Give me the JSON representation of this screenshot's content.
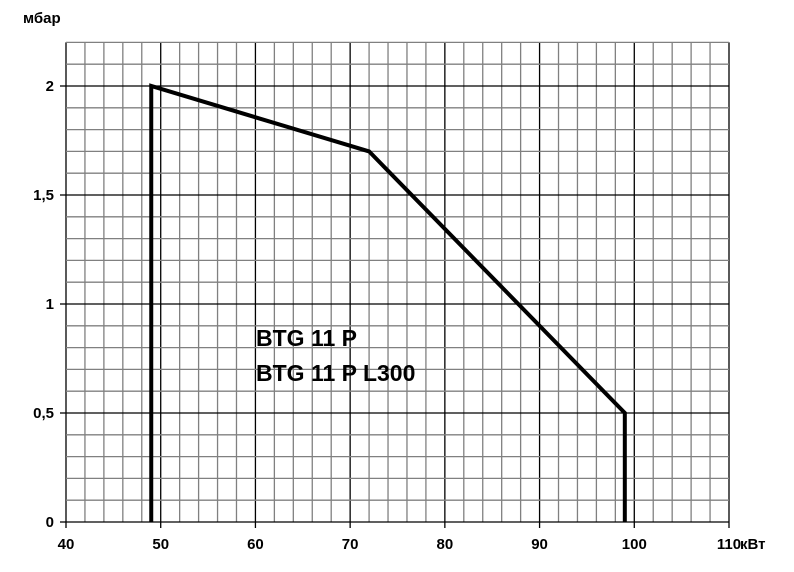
{
  "chart_data": {
    "type": "line",
    "title": "",
    "xlabel": "кВт",
    "ylabel": "мбар",
    "xlim": [
      40,
      110
    ],
    "ylim": [
      0,
      2.2
    ],
    "x_ticks": [
      40,
      50,
      60,
      70,
      80,
      90,
      100,
      110
    ],
    "x_tick_labels": [
      "40",
      "50",
      "60",
      "70",
      "80",
      "90",
      "100",
      "110"
    ],
    "y_ticks": [
      0,
      0.5,
      1,
      1.5,
      2
    ],
    "y_tick_labels": [
      "0",
      "0,5",
      "1",
      "1,5",
      "2"
    ],
    "x_minor_step": 2,
    "y_minor_step": 0.1,
    "grid": true,
    "series": [
      {
        "x": [
          49,
          49,
          72,
          99,
          99
        ],
        "y": [
          0,
          2,
          1.7,
          0.5,
          0
        ]
      }
    ],
    "annotations": [
      "BTG 11 P",
      "BTG 11 P L300"
    ],
    "colors": {
      "line": "#000000",
      "grid_minor": "#808080",
      "grid_major": "#000000"
    }
  }
}
